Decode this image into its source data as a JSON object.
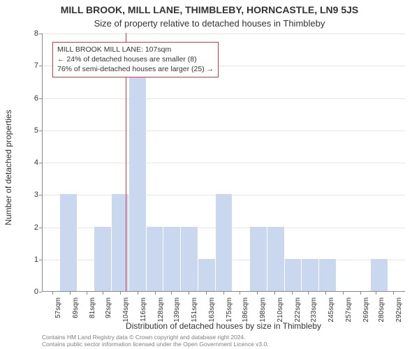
{
  "title": "MILL BROOK, MILL LANE, THIMBLEBY, HORNCASTLE, LN9 5JS",
  "subtitle": "Size of property relative to detached houses in Thimbleby",
  "y_axis_label": "Number of detached properties",
  "x_axis_label": "Distribution of detached houses by size in Thimbleby",
  "chart": {
    "type": "histogram",
    "background_color": "#ffffff",
    "grid_color": "#e5e5e5",
    "axis_color": "#888888",
    "bar_fill": "#c9d8ef",
    "bar_border": "#ffffff",
    "marker_color": "#dc3545",
    "ylim": [
      0,
      8
    ],
    "yticks": [
      0,
      1,
      2,
      3,
      4,
      5,
      6,
      7,
      8
    ],
    "xmin": 50,
    "xmax": 300,
    "xticks": [
      57,
      69,
      81,
      92,
      104,
      116,
      128,
      139,
      151,
      163,
      175,
      186,
      198,
      210,
      222,
      233,
      245,
      257,
      269,
      280,
      292
    ],
    "xtick_suffix": "sqm",
    "bin_width": 11.9,
    "bars": [
      {
        "x": 50.0,
        "h": 0
      },
      {
        "x": 61.9,
        "h": 3
      },
      {
        "x": 73.8,
        "h": 0
      },
      {
        "x": 85.7,
        "h": 2
      },
      {
        "x": 97.6,
        "h": 3
      },
      {
        "x": 109.5,
        "h": 7
      },
      {
        "x": 121.4,
        "h": 2
      },
      {
        "x": 133.3,
        "h": 2
      },
      {
        "x": 145.2,
        "h": 2
      },
      {
        "x": 157.2,
        "h": 1
      },
      {
        "x": 169.1,
        "h": 3
      },
      {
        "x": 181.0,
        "h": 0
      },
      {
        "x": 192.9,
        "h": 2
      },
      {
        "x": 204.8,
        "h": 2
      },
      {
        "x": 216.7,
        "h": 1
      },
      {
        "x": 228.6,
        "h": 1
      },
      {
        "x": 240.5,
        "h": 1
      },
      {
        "x": 252.4,
        "h": 0
      },
      {
        "x": 264.3,
        "h": 0
      },
      {
        "x": 276.2,
        "h": 1
      },
      {
        "x": 288.1,
        "h": 0
      }
    ],
    "marker_x": 107
  },
  "annotation": {
    "border_color": "#dc3545",
    "line1": "MILL BROOK MILL LANE: 107sqm",
    "line2": "← 24% of detached houses are smaller (8)",
    "line3": "76% of semi-detached houses are larger (25) →"
  },
  "credits": {
    "line1": "Contains HM Land Registry data © Crown copyright and database right 2024.",
    "line2": "Contains public sector information licensed under the Open Government Licence v3.0."
  }
}
